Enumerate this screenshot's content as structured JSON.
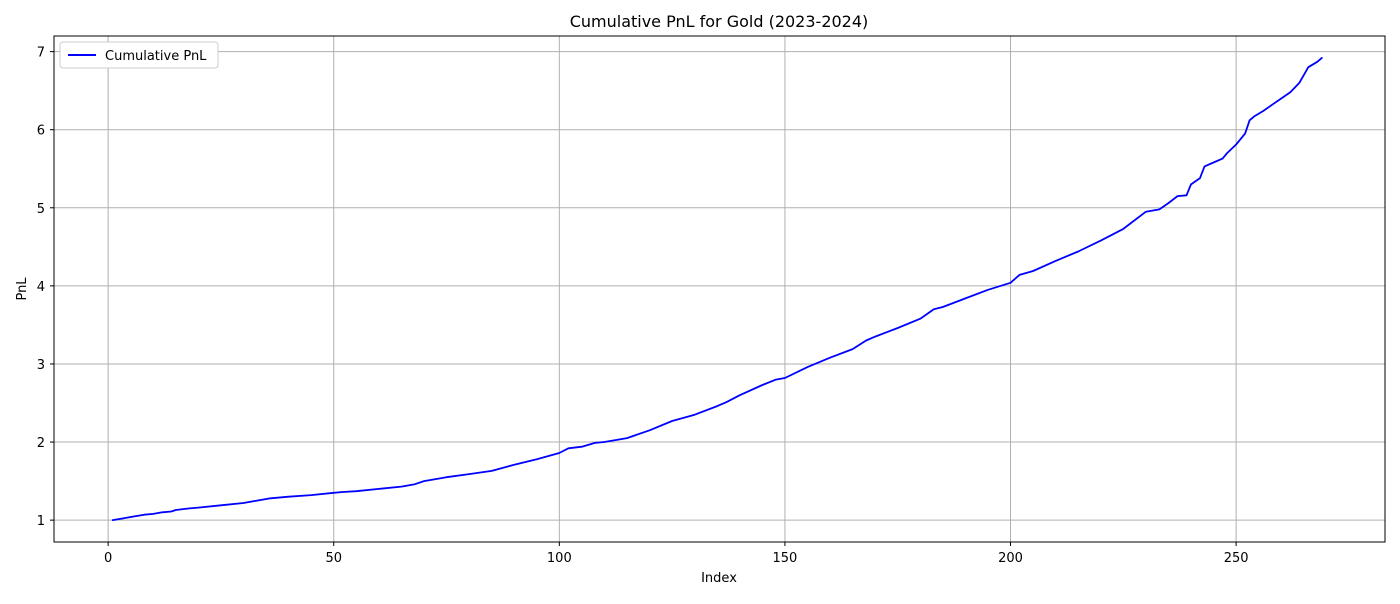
{
  "chart_data": {
    "type": "line",
    "title": "Cumulative PnL for Gold (2023-2024)",
    "xlabel": "Index",
    "ylabel": "PnL",
    "xlim": [
      -12,
      283
    ],
    "ylim": [
      0.72,
      7.2
    ],
    "xticks": [
      0,
      50,
      100,
      150,
      200,
      250
    ],
    "yticks": [
      1,
      2,
      3,
      4,
      5,
      6,
      7
    ],
    "grid": true,
    "legend_position": "top-left",
    "series": [
      {
        "name": "Cumulative PnL",
        "color": "#0000ff",
        "x": [
          1,
          3,
          5,
          8,
          10,
          12,
          14,
          15,
          18,
          20,
          25,
          30,
          33,
          36,
          40,
          45,
          50,
          52,
          55,
          60,
          65,
          68,
          70,
          75,
          80,
          85,
          90,
          95,
          100,
          102,
          105,
          108,
          110,
          115,
          120,
          125,
          130,
          135,
          137,
          140,
          145,
          148,
          150,
          155,
          160,
          165,
          168,
          170,
          175,
          180,
          183,
          185,
          190,
          195,
          200,
          202,
          205,
          210,
          215,
          220,
          225,
          230,
          233,
          235,
          237,
          239,
          240,
          242,
          243,
          245,
          247,
          248,
          250,
          252,
          253,
          254,
          256,
          258,
          260,
          262,
          264,
          266,
          268,
          269
        ],
        "y": [
          1.0,
          1.02,
          1.04,
          1.07,
          1.08,
          1.1,
          1.11,
          1.13,
          1.15,
          1.16,
          1.19,
          1.22,
          1.25,
          1.28,
          1.3,
          1.32,
          1.35,
          1.36,
          1.37,
          1.4,
          1.43,
          1.46,
          1.5,
          1.55,
          1.59,
          1.63,
          1.71,
          1.78,
          1.86,
          1.92,
          1.94,
          1.99,
          2.0,
          2.05,
          2.15,
          2.27,
          2.35,
          2.46,
          2.51,
          2.6,
          2.73,
          2.8,
          2.82,
          2.96,
          3.08,
          3.19,
          3.3,
          3.35,
          3.46,
          3.58,
          3.7,
          3.73,
          3.84,
          3.95,
          4.04,
          4.14,
          4.19,
          4.32,
          4.44,
          4.58,
          4.73,
          4.95,
          4.98,
          5.06,
          5.15,
          5.16,
          5.3,
          5.38,
          5.53,
          5.58,
          5.63,
          5.7,
          5.81,
          5.95,
          6.12,
          6.17,
          6.24,
          6.32,
          6.4,
          6.48,
          6.6,
          6.8,
          6.87,
          6.92
        ]
      }
    ]
  }
}
